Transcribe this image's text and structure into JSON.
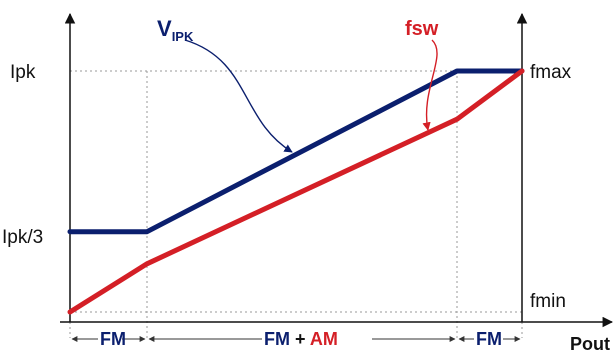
{
  "chart_data": {
    "type": "line",
    "xlabel": "Pout",
    "y_tick_labels": {
      "ipk": "Ipk",
      "ipk3": "Ipk/3",
      "fmax": "fmax",
      "fmin": "fmin"
    },
    "x": [
      0,
      0.2,
      1.0,
      1.2
    ],
    "series": [
      {
        "name": "V",
        "name_subscript": "IPK",
        "color": "#0b1f6e",
        "values": [
          0.333,
          0.333,
          1.0,
          1.0
        ]
      },
      {
        "name": "fsw",
        "color": "#d41f26",
        "values": [
          0.0,
          0.2,
          0.8,
          1.0
        ]
      }
    ],
    "ylim": [
      0,
      1
    ],
    "grid": false,
    "regions": [
      {
        "label": "FM",
        "from": 0,
        "to": 0.2
      },
      {
        "label_a": "FM",
        "label_b": "AM",
        "from": 0.2,
        "to": 1.0
      },
      {
        "label": "FM",
        "from": 1.0,
        "to": 1.2
      }
    ],
    "region_sep": " + "
  }
}
